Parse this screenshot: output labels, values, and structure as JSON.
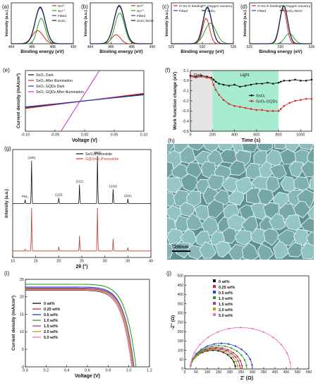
{
  "chart_data": [
    {
      "label": "(a)",
      "type": "line",
      "xlabel": "Binding energy (eV)",
      "ylabel": "Intensity (a.u.)",
      "xlim": [
        484,
        490
      ],
      "xticks": [
        484,
        486,
        488,
        490
      ],
      "legend": [
        "Sn²⁺",
        "Sn⁴⁺",
        "Fitted",
        "SnO₂"
      ],
      "legend_position": "top-right",
      "series": [
        {
          "name": "Sn²⁺",
          "color": "#d62728",
          "center": 486.55,
          "width": 0.75,
          "height": 0.32
        },
        {
          "name": "Sn⁴⁺",
          "color": "#2ca02c",
          "center": 486.9,
          "width": 0.55,
          "height": 0.62
        },
        {
          "name": "Fitted",
          "color": "#1f3fd0",
          "center": 486.8,
          "width": 0.7,
          "height": 0.88
        },
        {
          "name": "SnO₂",
          "color": "#222222",
          "center": 486.8,
          "width": 0.7,
          "height": 0.9
        }
      ]
    },
    {
      "label": "(b)",
      "type": "line",
      "xlabel": "Binding energy (eV)",
      "ylabel": "Intensity (a.u.)",
      "xlim": [
        484,
        490
      ],
      "xticks": [
        484,
        486,
        488,
        490
      ],
      "legend": [
        "Sn²⁺",
        "Sn⁴⁺",
        "Fitted",
        "SnO₂:NGO"
      ],
      "legend_position": "top-right",
      "series": [
        {
          "name": "Sn²⁺",
          "color": "#d62728",
          "center": 486.5,
          "width": 0.6,
          "height": 0.22
        },
        {
          "name": "Sn⁴⁺",
          "color": "#2ca02c",
          "center": 486.85,
          "width": 0.65,
          "height": 0.75
        },
        {
          "name": "Fitted",
          "color": "#1f3fd0",
          "center": 486.8,
          "width": 0.72,
          "height": 0.92
        },
        {
          "name": "SnO₂:NGO",
          "color": "#222222",
          "center": 486.8,
          "width": 0.72,
          "height": 0.94
        }
      ]
    },
    {
      "label": "(c)",
      "type": "line",
      "xlabel": "Binding energy (eV)",
      "ylabel": "Intensity (a.u.)",
      "xlim": [
        525,
        535
      ],
      "xticks": [
        525,
        530,
        535
      ],
      "legend": [
        "O-Sn-O binding",
        "Oxygen vacancy",
        "Fitted",
        "SnO₂"
      ],
      "legend_position": "top",
      "series": [
        {
          "name": "O-Sn-O binding",
          "color": "#d62728",
          "center": 530.6,
          "width": 0.8,
          "height": 0.62
        },
        {
          "name": "Oxygen vacancy",
          "color": "#2ca02c",
          "center": 531.3,
          "width": 1.3,
          "height": 0.5
        },
        {
          "name": "Fitted",
          "color": "#1f3fd0",
          "center": 530.8,
          "width": 1.0,
          "height": 0.88
        },
        {
          "name": "SnO₂",
          "color": "#222222",
          "center": 530.8,
          "width": 1.0,
          "height": 0.9
        }
      ]
    },
    {
      "label": "(d)",
      "type": "line",
      "xlabel": "Binding energy (eV)",
      "ylabel": "Intensity (a.u.)",
      "xlim": [
        525,
        535
      ],
      "xticks": [
        525,
        530,
        535
      ],
      "legend": [
        "O-Sn-O binding",
        "Oxygen vacancy",
        "Fitted",
        "SnO₂:NGO"
      ],
      "legend_position": "top",
      "series": [
        {
          "name": "O-Sn-O binding",
          "color": "#d62728",
          "center": 530.4,
          "width": 0.8,
          "height": 0.86
        },
        {
          "name": "Oxygen vacancy",
          "color": "#2ca02c",
          "center": 531.4,
          "width": 1.0,
          "height": 0.25
        },
        {
          "name": "Fitted",
          "color": "#1f3fd0",
          "center": 530.5,
          "width": 0.9,
          "height": 0.92
        },
        {
          "name": "SnO₂:NGO",
          "color": "#222222",
          "center": 530.5,
          "width": 0.9,
          "height": 0.94
        }
      ]
    },
    {
      "label": "(e)",
      "type": "line",
      "xlabel": "Voltage (V)",
      "ylabel": "Current density (mA/cm²)",
      "xlim": [
        -0.1,
        0.1
      ],
      "xticks": [
        "-0.10",
        "-0.05",
        "0.00",
        "0.05",
        "0.10"
      ],
      "legend_position": "top-left",
      "series": [
        {
          "name": "SnO₂ Dark",
          "color": "#111111",
          "x": [
            -0.1,
            0.1
          ],
          "y": [
            -0.22,
            0.22
          ]
        },
        {
          "name": "SnO₂ After illumination",
          "color": "#d62728",
          "x": [
            -0.1,
            0.1
          ],
          "y": [
            -0.25,
            0.25
          ]
        },
        {
          "name": "SnO₂ GQDs Dark",
          "color": "#1f3fd0",
          "x": [
            -0.1,
            0.1
          ],
          "y": [
            -0.2,
            0.2
          ]
        },
        {
          "name": "SnO₂ GQDs After illumination",
          "color": "#c040c0",
          "x": [
            -0.04,
            0.025
          ],
          "y": [
            -1.0,
            1.0
          ]
        }
      ]
    },
    {
      "label": "(f)",
      "type": "scatter",
      "xlabel": "Time (s)",
      "ylabel": "Work function change (eV)",
      "xlim": [
        0,
        1100
      ],
      "ylim": [
        -0.5,
        0.1
      ],
      "xticks": [
        0,
        200,
        400,
        600,
        800,
        1000
      ],
      "yticks": [
        "0.1",
        "0.0",
        "-0.1",
        "-0.2",
        "-0.3",
        "-0.4",
        "-0.5"
      ],
      "annotations": [
        "Dark",
        "Light"
      ],
      "light_region": [
        200,
        800
      ],
      "legend_position": "center",
      "series": [
        {
          "name": "SnO₂",
          "color": "#111111",
          "x": [
            0,
            50,
            100,
            150,
            190,
            210,
            230,
            260,
            300,
            350,
            400,
            450,
            500,
            550,
            600,
            650,
            700,
            750,
            800,
            820,
            850,
            900,
            950,
            1000,
            1050,
            1100
          ],
          "y": [
            0.05,
            0.04,
            0.05,
            0.04,
            0.03,
            0.01,
            -0.01,
            -0.03,
            -0.04,
            -0.05,
            -0.04,
            -0.06,
            -0.05,
            -0.04,
            -0.03,
            -0.03,
            -0.02,
            -0.03,
            -0.02,
            -0.01,
            0.0,
            0.0,
            0.01,
            0.0,
            0.0,
            0.01
          ]
        },
        {
          "name": "SnO₂-GQDs",
          "color": "#d62728",
          "x": [
            0,
            50,
            100,
            150,
            190,
            210,
            230,
            260,
            300,
            350,
            400,
            450,
            500,
            550,
            600,
            650,
            700,
            750,
            800,
            820,
            850,
            900,
            950,
            1000,
            1050,
            1100
          ],
          "y": [
            0.04,
            0.03,
            0.04,
            0.03,
            0.02,
            -0.04,
            -0.09,
            -0.14,
            -0.19,
            -0.23,
            -0.25,
            -0.26,
            -0.27,
            -0.28,
            -0.29,
            -0.29,
            -0.3,
            -0.3,
            -0.3,
            -0.28,
            -0.25,
            -0.22,
            -0.2,
            -0.19,
            -0.18,
            -0.18
          ]
        }
      ]
    },
    {
      "label": "(g)",
      "type": "line",
      "xlabel": "2θ (°)",
      "ylabel": "Intensity (a.u.)",
      "xlim": [
        10,
        40
      ],
      "xticks": [
        10,
        15,
        20,
        25,
        30,
        35,
        40
      ],
      "legend": [
        "SnO₂/Perovskite",
        "G@SnO₂/Perovskite"
      ],
      "legend_position": "top-right",
      "peak_labels": [
        {
          "label": "PbI₂",
          "x": 12.7
        },
        {
          "label": "(100)",
          "x": 14.1
        },
        {
          "label": "(110)",
          "x": 20.0
        },
        {
          "label": "(111)",
          "x": 24.5
        },
        {
          "label": "(200)",
          "x": 28.4
        },
        {
          "label": "(210)",
          "x": 31.8
        },
        {
          "label": "(211)",
          "x": 35.0
        }
      ],
      "series": [
        {
          "name": "SnO₂/Perovskite",
          "color": "#111111",
          "x": [
            12.7,
            14.1,
            20.0,
            24.5,
            28.4,
            31.8,
            35.0
          ],
          "y": [
            0.08,
            0.9,
            0.12,
            0.4,
            1.0,
            0.3,
            0.1
          ]
        },
        {
          "name": "G@SnO₂/Perovskite",
          "color": "#c0392b",
          "x": [
            12.7,
            14.1,
            20.0,
            24.5,
            28.4,
            31.8,
            35.0
          ],
          "y": [
            0.04,
            1.0,
            0.1,
            0.35,
            1.0,
            0.28,
            0.08
          ]
        }
      ]
    },
    {
      "label": "(i)",
      "type": "line",
      "xlabel": "Voltage (V)",
      "ylabel": "Current density (mA/cm²)",
      "xlim": [
        0.0,
        1.2
      ],
      "ylim": [
        0,
        25
      ],
      "xticks": [
        "0.0",
        "0.2",
        "0.4",
        "0.6",
        "0.8",
        "1.0",
        "1.2"
      ],
      "yticks": [
        0,
        5,
        10,
        15,
        20,
        25
      ],
      "legend_position": "center",
      "series": [
        {
          "name": "0 wt%",
          "color": "#111111",
          "jsc": 21.9,
          "voc": 1.03
        },
        {
          "name": "0.25 wt%",
          "color": "#d62728",
          "jsc": 22.3,
          "voc": 1.04
        },
        {
          "name": "0.5 wt%",
          "color": "#1f3fd0",
          "jsc": 22.8,
          "voc": 1.05
        },
        {
          "name": "1.0 wt%",
          "color": "#2ca02c",
          "jsc": 23.6,
          "voc": 1.07
        },
        {
          "name": "1.5 wt%",
          "color": "#8e44ad",
          "jsc": 22.5,
          "voc": 1.05
        },
        {
          "name": "2.0 wt%",
          "color": "#c0a000",
          "jsc": 22.2,
          "voc": 1.04
        },
        {
          "name": "5.0 wt%",
          "color": "#e377c2",
          "jsc": 22.0,
          "voc": 1.03
        }
      ]
    },
    {
      "label": "(j)",
      "type": "scatter",
      "xlabel": "Z' (Ω)",
      "ylabel": "-Z'' (Ω)",
      "xlim": [
        0,
        550
      ],
      "ylim": [
        0,
        500
      ],
      "xticks": [
        0,
        50,
        100,
        150,
        200,
        250,
        300,
        350,
        400,
        450,
        500,
        550
      ],
      "yticks": [
        0,
        50,
        100,
        150,
        200,
        250,
        300,
        350,
        400,
        450,
        500
      ],
      "legend_position": "top-left",
      "series": [
        {
          "name": "0 wt%",
          "color": "#111111",
          "r0": 25,
          "r1": 225
        },
        {
          "name": "0.25 wt%",
          "color": "#d62728",
          "r0": 25,
          "r1": 255
        },
        {
          "name": "0.5 wt%",
          "color": "#1f3fd0",
          "r0": 25,
          "r1": 300
        },
        {
          "name": "1.0 wt%",
          "color": "#2ca02c",
          "r0": 25,
          "r1": 275
        },
        {
          "name": "1.5 wt%",
          "color": "#8e44ad",
          "r0": 25,
          "r1": 245
        },
        {
          "name": "2.0 wt%",
          "color": "#c0a000",
          "r0": 25,
          "r1": 235
        },
        {
          "name": "5.0 wt%",
          "color": "#e377c2",
          "r0": 25,
          "r1": 470
        }
      ]
    }
  ],
  "sem": {
    "label": "(h)",
    "scalebar": "200nm",
    "base_color": "#7fb2b2"
  }
}
